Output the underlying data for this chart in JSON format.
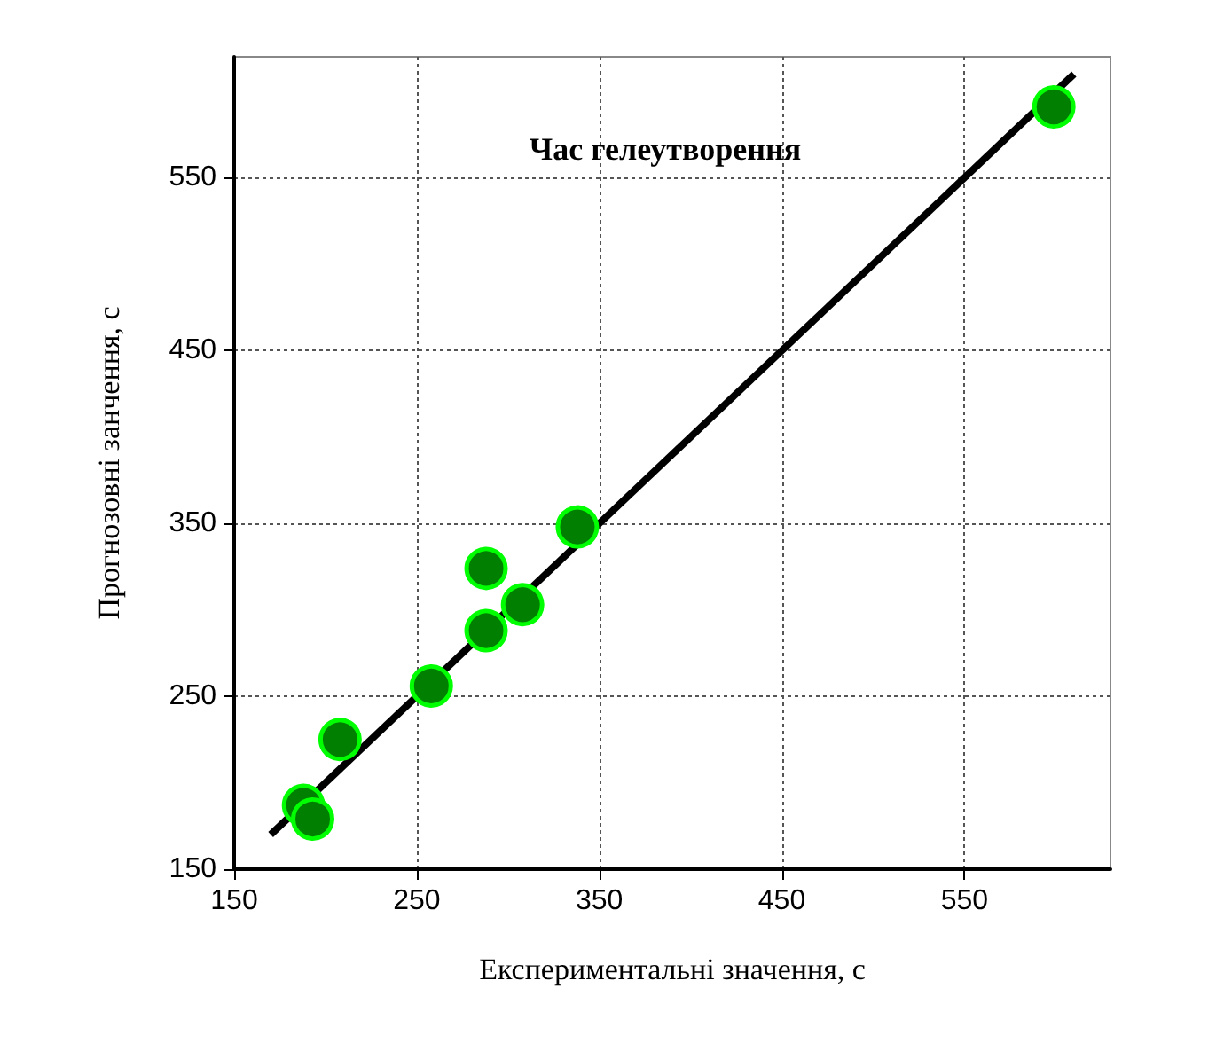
{
  "chart_data": {
    "type": "scatter",
    "title": "Час гелеутворення",
    "xlabel": "Експериментальні значення, с",
    "ylabel": "Прогнозовні занчення, с",
    "xlim": [
      150,
      630
    ],
    "xticks": [
      150,
      250,
      350,
      450,
      550
    ],
    "ylim": [
      150,
      620
    ],
    "yticks": [
      150,
      250,
      350,
      450,
      550
    ],
    "grid": true,
    "marker": "circle",
    "series": [
      {
        "type": "line",
        "color": "#000000",
        "x": [
          170,
          610
        ],
        "values": [
          170,
          610
        ],
        "line_style": "solid",
        "marker": "none"
      },
      {
        "color": "#007f00",
        "x": [
          188,
          193,
          208,
          258,
          288,
          288,
          308,
          338,
          599
        ],
        "values": [
          187,
          179,
          225,
          256,
          288,
          324,
          303,
          348,
          591
        ]
      }
    ]
  }
}
